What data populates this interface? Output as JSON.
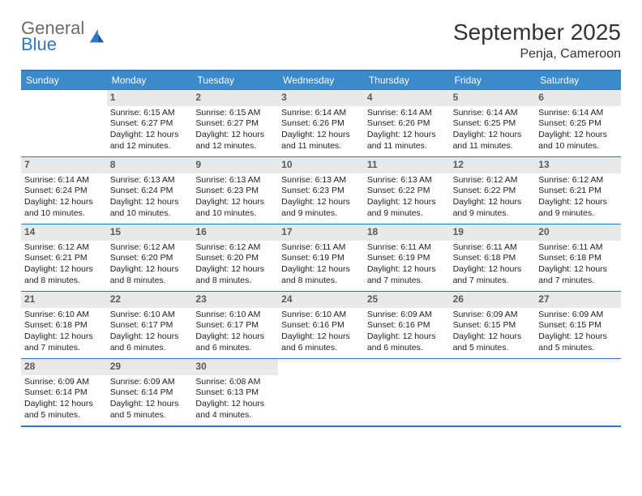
{
  "logo": {
    "line1": "General",
    "line2": "Blue"
  },
  "header": {
    "month": "September 2025",
    "location": "Penja, Cameroon"
  },
  "colors": {
    "accent": "#3b8acb",
    "border": "#2f78c4",
    "numBg": "#e8e9ea",
    "numText": "#5a5a5a",
    "headerText": "#ffffff",
    "logoGray": "#6c6c6c",
    "logoBlue": "#2f78c4"
  },
  "dayHeaders": [
    "Sunday",
    "Monday",
    "Tuesday",
    "Wednesday",
    "Thursday",
    "Friday",
    "Saturday"
  ],
  "startOffset": 1,
  "days": [
    {
      "n": 1,
      "sr": "6:15 AM",
      "ss": "6:27 PM",
      "dl": "12 hours and 12 minutes."
    },
    {
      "n": 2,
      "sr": "6:15 AM",
      "ss": "6:27 PM",
      "dl": "12 hours and 12 minutes."
    },
    {
      "n": 3,
      "sr": "6:14 AM",
      "ss": "6:26 PM",
      "dl": "12 hours and 11 minutes."
    },
    {
      "n": 4,
      "sr": "6:14 AM",
      "ss": "6:26 PM",
      "dl": "12 hours and 11 minutes."
    },
    {
      "n": 5,
      "sr": "6:14 AM",
      "ss": "6:25 PM",
      "dl": "12 hours and 11 minutes."
    },
    {
      "n": 6,
      "sr": "6:14 AM",
      "ss": "6:25 PM",
      "dl": "12 hours and 10 minutes."
    },
    {
      "n": 7,
      "sr": "6:14 AM",
      "ss": "6:24 PM",
      "dl": "12 hours and 10 minutes."
    },
    {
      "n": 8,
      "sr": "6:13 AM",
      "ss": "6:24 PM",
      "dl": "12 hours and 10 minutes."
    },
    {
      "n": 9,
      "sr": "6:13 AM",
      "ss": "6:23 PM",
      "dl": "12 hours and 10 minutes."
    },
    {
      "n": 10,
      "sr": "6:13 AM",
      "ss": "6:23 PM",
      "dl": "12 hours and 9 minutes."
    },
    {
      "n": 11,
      "sr": "6:13 AM",
      "ss": "6:22 PM",
      "dl": "12 hours and 9 minutes."
    },
    {
      "n": 12,
      "sr": "6:12 AM",
      "ss": "6:22 PM",
      "dl": "12 hours and 9 minutes."
    },
    {
      "n": 13,
      "sr": "6:12 AM",
      "ss": "6:21 PM",
      "dl": "12 hours and 9 minutes."
    },
    {
      "n": 14,
      "sr": "6:12 AM",
      "ss": "6:21 PM",
      "dl": "12 hours and 8 minutes."
    },
    {
      "n": 15,
      "sr": "6:12 AM",
      "ss": "6:20 PM",
      "dl": "12 hours and 8 minutes."
    },
    {
      "n": 16,
      "sr": "6:12 AM",
      "ss": "6:20 PM",
      "dl": "12 hours and 8 minutes."
    },
    {
      "n": 17,
      "sr": "6:11 AM",
      "ss": "6:19 PM",
      "dl": "12 hours and 8 minutes."
    },
    {
      "n": 18,
      "sr": "6:11 AM",
      "ss": "6:19 PM",
      "dl": "12 hours and 7 minutes."
    },
    {
      "n": 19,
      "sr": "6:11 AM",
      "ss": "6:18 PM",
      "dl": "12 hours and 7 minutes."
    },
    {
      "n": 20,
      "sr": "6:11 AM",
      "ss": "6:18 PM",
      "dl": "12 hours and 7 minutes."
    },
    {
      "n": 21,
      "sr": "6:10 AM",
      "ss": "6:18 PM",
      "dl": "12 hours and 7 minutes."
    },
    {
      "n": 22,
      "sr": "6:10 AM",
      "ss": "6:17 PM",
      "dl": "12 hours and 6 minutes."
    },
    {
      "n": 23,
      "sr": "6:10 AM",
      "ss": "6:17 PM",
      "dl": "12 hours and 6 minutes."
    },
    {
      "n": 24,
      "sr": "6:10 AM",
      "ss": "6:16 PM",
      "dl": "12 hours and 6 minutes."
    },
    {
      "n": 25,
      "sr": "6:09 AM",
      "ss": "6:16 PM",
      "dl": "12 hours and 6 minutes."
    },
    {
      "n": 26,
      "sr": "6:09 AM",
      "ss": "6:15 PM",
      "dl": "12 hours and 5 minutes."
    },
    {
      "n": 27,
      "sr": "6:09 AM",
      "ss": "6:15 PM",
      "dl": "12 hours and 5 minutes."
    },
    {
      "n": 28,
      "sr": "6:09 AM",
      "ss": "6:14 PM",
      "dl": "12 hours and 5 minutes."
    },
    {
      "n": 29,
      "sr": "6:09 AM",
      "ss": "6:14 PM",
      "dl": "12 hours and 5 minutes."
    },
    {
      "n": 30,
      "sr": "6:08 AM",
      "ss": "6:13 PM",
      "dl": "12 hours and 4 minutes."
    }
  ],
  "labels": {
    "sunrise": "Sunrise:",
    "sunset": "Sunset:",
    "daylight": "Daylight:"
  }
}
